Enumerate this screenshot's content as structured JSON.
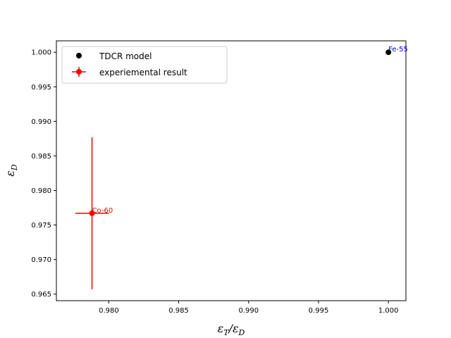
{
  "chart_data": {
    "type": "scatter",
    "xlabel": {
      "main": "ε",
      "sub1": "T",
      "slash": "/",
      "main2": "ε",
      "sub2": "D"
    },
    "ylabel": {
      "main": "ε",
      "sub": "D"
    },
    "xlim": [
      0.97625,
      1.00125
    ],
    "ylim": [
      0.96405,
      1.00165
    ],
    "x_ticks": [
      0.98,
      0.985,
      0.99,
      0.995,
      1.0
    ],
    "x_tick_labels": [
      "0.980",
      "0.985",
      "0.990",
      "0.995",
      "1.000"
    ],
    "y_ticks": [
      0.965,
      0.97,
      0.975,
      0.98,
      0.985,
      0.99,
      0.995,
      1.0
    ],
    "y_tick_labels": [
      "0.965",
      "0.970",
      "0.975",
      "0.980",
      "0.985",
      "0.990",
      "0.995",
      "1.000"
    ],
    "grid": false,
    "legend_position": "top-left",
    "series": [
      {
        "name": "TDCR model",
        "color": "#000000",
        "points": [
          {
            "x": 1.0,
            "y": 1.0,
            "label": "Fe-55",
            "label_color": "#0000ff"
          }
        ]
      },
      {
        "name": "experiemental result",
        "color": "#ff0000",
        "points": [
          {
            "x": 0.9788,
            "y": 0.9767,
            "xerr": 0.0012,
            "yerr": 0.011,
            "label": "Co-60",
            "label_color": "#ff0000"
          }
        ]
      }
    ]
  }
}
